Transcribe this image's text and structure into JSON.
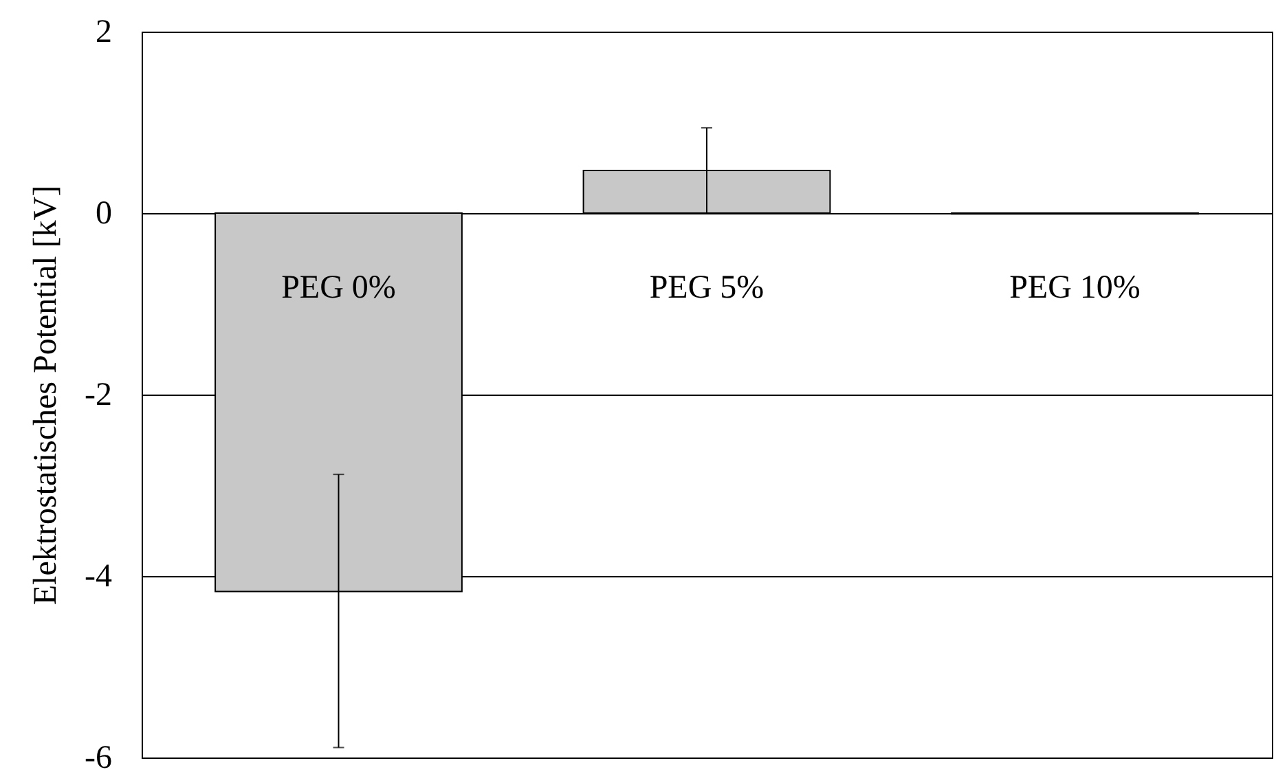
{
  "chart_data": {
    "type": "bar",
    "ylabel": "Elektrostatisches Potential [kV]",
    "categories": [
      "PEG 0%",
      "PEG 5%",
      "PEG 10%"
    ],
    "values": [
      -4.17,
      0.47,
      -0.01
    ],
    "errors": [
      [
        -5.89,
        -2.88
      ],
      [
        0.0,
        0.94
      ],
      null
    ],
    "color": "#c8c8c8",
    "ylim": [
      -6,
      2
    ],
    "yticks": [
      -6,
      -4,
      -2,
      0,
      2
    ],
    "grid": "y"
  }
}
